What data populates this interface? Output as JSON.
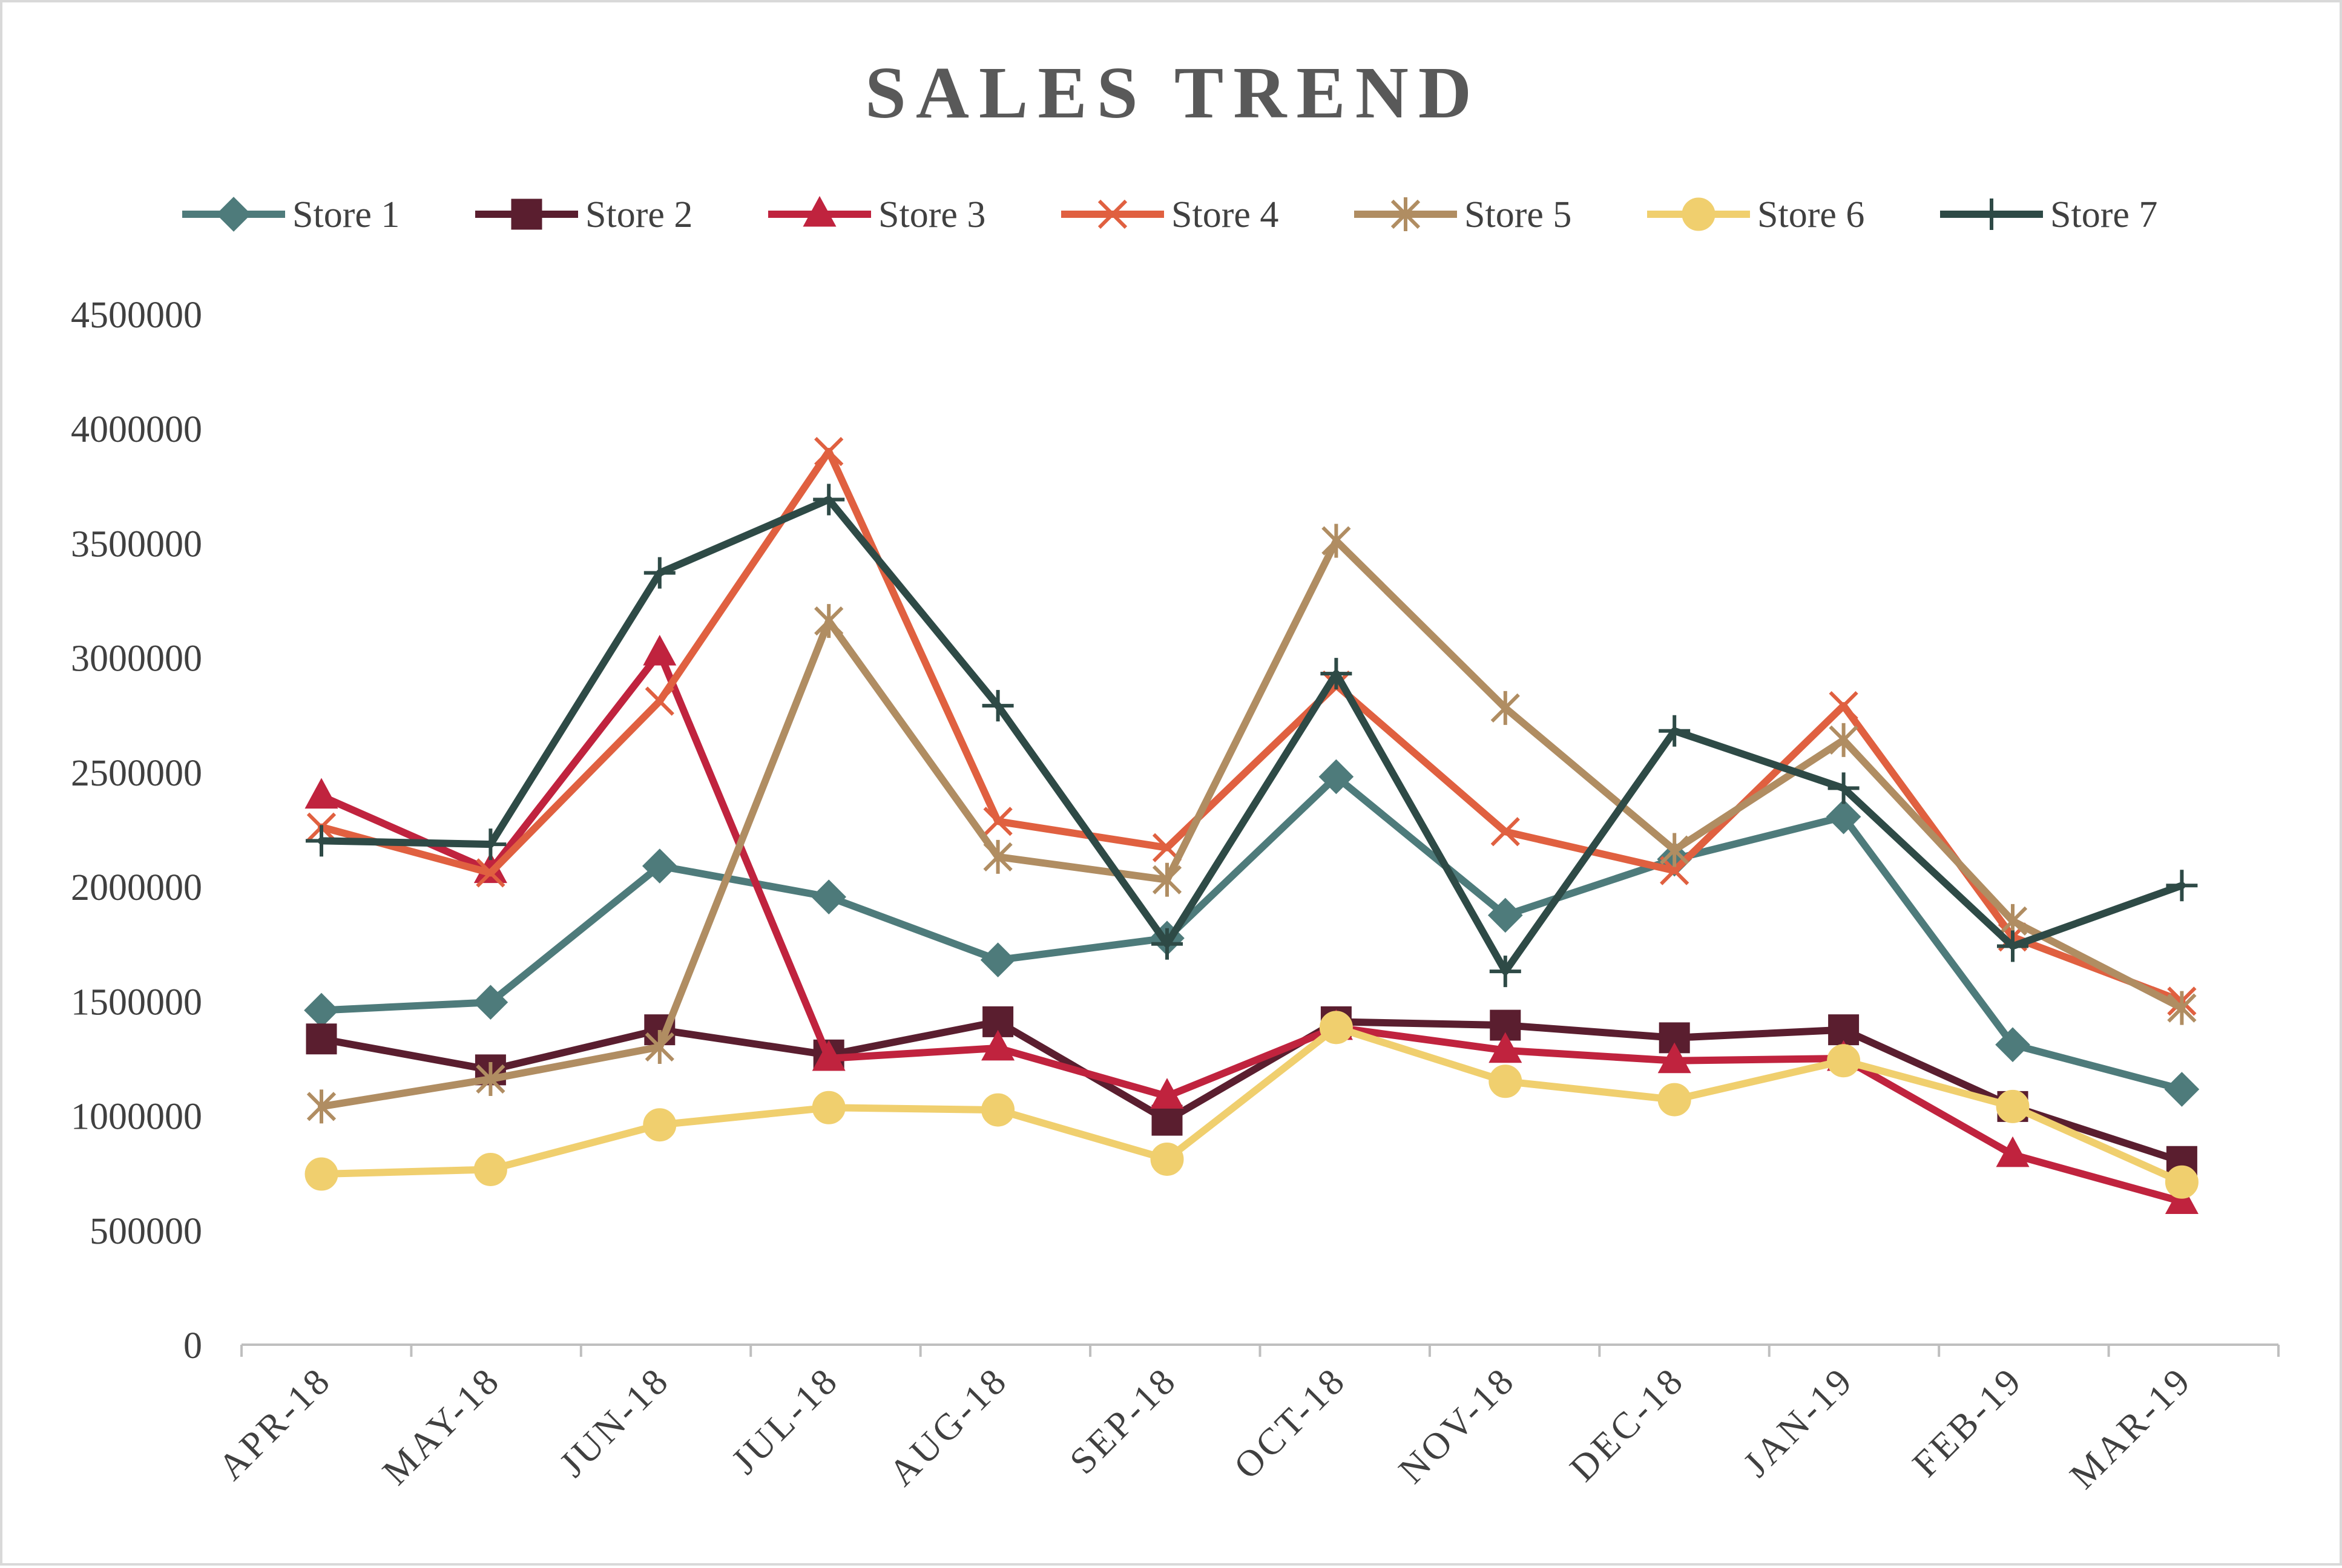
{
  "chart_data": {
    "type": "line",
    "title": "SALES TREND",
    "xlabel": "",
    "ylabel": "",
    "categories": [
      "APR-18",
      "MAY-18",
      "JUN-18",
      "JUL-18",
      "AUG-18",
      "SEP-18",
      "OCT-18",
      "NOV-18",
      "DEC-18",
      "JAN-19",
      "FEB-19",
      "MAR-19"
    ],
    "ylim": [
      0,
      4500000
    ],
    "yticks": [
      "0",
      "500000",
      "1000000",
      "1500000",
      "2000000",
      "2500000",
      "3000000",
      "3500000",
      "4000000",
      "4500000"
    ],
    "grid": false,
    "legend_position": "top",
    "series": [
      {
        "name": "Store 1",
        "color": "#4e7b7b",
        "marker": "diamond",
        "values": [
          1460000,
          1495000,
          2090000,
          1955000,
          1680000,
          1775000,
          2480000,
          1875000,
          2120000,
          2305000,
          1310000,
          1115000
        ]
      },
      {
        "name": "Store 2",
        "color": "#5a1e2f",
        "marker": "square",
        "values": [
          1335000,
          1200000,
          1375000,
          1265000,
          1410000,
          980000,
          1410000,
          1395000,
          1340000,
          1375000,
          1040000,
          800000
        ]
      },
      {
        "name": "Store 3",
        "color": "#c0233e",
        "marker": "triangle",
        "values": [
          2395000,
          2070000,
          3020000,
          1250000,
          1295000,
          1085000,
          1385000,
          1285000,
          1240000,
          1250000,
          830000,
          625000
        ]
      },
      {
        "name": "Store 4",
        "color": "#e06040",
        "marker": "x",
        "values": [
          2260000,
          2060000,
          2810000,
          3900000,
          2285000,
          2170000,
          2880000,
          2240000,
          2070000,
          2790000,
          1780000,
          1500000
        ]
      },
      {
        "name": "Store 5",
        "color": "#b08d62",
        "marker": "star",
        "values": [
          1040000,
          1160000,
          1300000,
          3160000,
          2130000,
          2030000,
          3510000,
          2780000,
          2160000,
          2640000,
          1850000,
          1470000
        ]
      },
      {
        "name": "Store 6",
        "color": "#f0cf6e",
        "marker": "circle",
        "values": [
          745000,
          765000,
          960000,
          1035000,
          1025000,
          810000,
          1385000,
          1150000,
          1070000,
          1240000,
          1040000,
          710000
        ]
      },
      {
        "name": "Store 7",
        "color": "#2e4a46",
        "marker": "plus",
        "values": [
          2200000,
          2185000,
          3370000,
          3690000,
          2790000,
          1750000,
          2930000,
          1630000,
          2680000,
          2430000,
          1740000,
          2005000
        ]
      }
    ]
  }
}
